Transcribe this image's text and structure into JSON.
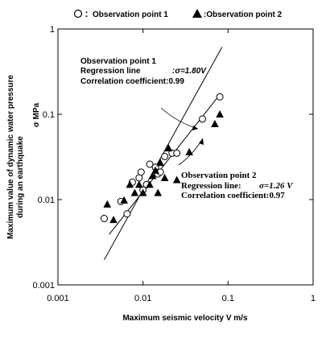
{
  "chart_data": {
    "type": "scatter",
    "xscale": "log",
    "yscale": "log",
    "xlim": [
      0.001,
      1
    ],
    "ylim": [
      0.001,
      1
    ],
    "x_ticks": [
      "0.001",
      "0.01",
      "0.1",
      "1"
    ],
    "y_ticks": [
      "0.001",
      "0.01",
      "0.1",
      "1"
    ],
    "xlabel": "Maximum seismic velocity V m/s",
    "ylabel_line1": "Maximum value of dynamic water pressure",
    "ylabel_line2": "during an earthquake",
    "ylabel_unit": "σ MPa",
    "legend_position": "top",
    "grid": false,
    "series": [
      {
        "name": "Observation point 1",
        "legend_label": "：Observation point 1",
        "marker": "open-circle",
        "color": "#000000",
        "points": [
          [
            0.0035,
            0.006
          ],
          [
            0.0055,
            0.0095
          ],
          [
            0.0065,
            0.0068
          ],
          [
            0.0075,
            0.016
          ],
          [
            0.009,
            0.018
          ],
          [
            0.0095,
            0.021
          ],
          [
            0.01,
            0.013
          ],
          [
            0.011,
            0.015
          ],
          [
            0.012,
            0.026
          ],
          [
            0.014,
            0.024
          ],
          [
            0.015,
            0.02
          ],
          [
            0.016,
            0.021
          ],
          [
            0.018,
            0.032
          ],
          [
            0.022,
            0.035
          ],
          [
            0.025,
            0.035
          ],
          [
            0.05,
            0.088
          ],
          [
            0.08,
            0.16
          ]
        ],
        "regression": {
          "slope": 1.8,
          "x_range": [
            0.0035,
            0.085
          ]
        }
      },
      {
        "name": "Observation point 2",
        "legend_label": ":Observation point 2",
        "marker": "filled-triangle",
        "color": "#000000",
        "points": [
          [
            0.0038,
            0.0088
          ],
          [
            0.0045,
            0.0058
          ],
          [
            0.006,
            0.0098
          ],
          [
            0.007,
            0.015
          ],
          [
            0.008,
            0.012
          ],
          [
            0.009,
            0.015
          ],
          [
            0.01,
            0.012
          ],
          [
            0.012,
            0.015
          ],
          [
            0.013,
            0.019
          ],
          [
            0.014,
            0.022
          ],
          [
            0.015,
            0.012
          ],
          [
            0.016,
            0.027
          ],
          [
            0.018,
            0.018
          ],
          [
            0.02,
            0.04
          ],
          [
            0.025,
            0.017
          ],
          [
            0.035,
            0.036
          ],
          [
            0.07,
            0.077
          ],
          [
            0.08,
            0.1
          ]
        ],
        "regression": {
          "slope": 1.26,
          "x_range": [
            0.004,
            0.08
          ]
        }
      }
    ],
    "annotations": [
      {
        "title": "Observation point 1",
        "line_prefix": "Regression line",
        "line_value": ":σ=1.80V",
        "corr": "Correlation coefficient:0.99"
      },
      {
        "title": "Observation point 2",
        "line_prefix": "Regression line:",
        "line_value": "σ=1.26 V",
        "corr": "Correlation coefficient:0.97"
      }
    ]
  }
}
